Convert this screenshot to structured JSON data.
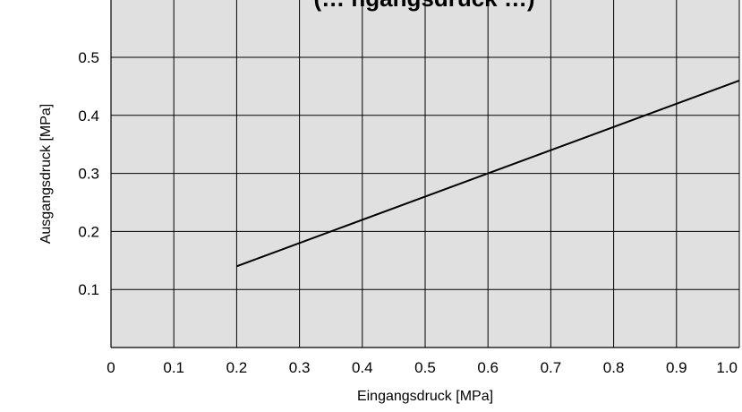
{
  "chart_data": {
    "type": "line",
    "title": "(… ngangsdruck …)",
    "xlabel": "Eingangsdruck  [MPa]",
    "ylabel": "Ausgangsdruck  [MPa]",
    "xlim": [
      0,
      1.0
    ],
    "ylim": [
      0,
      0.5
    ],
    "x_ticks": [
      "0",
      "0.1",
      "0.2",
      "0.3",
      "0.4",
      "0.5",
      "0.6",
      "0.7",
      "0.8",
      "0.9",
      "1.0"
    ],
    "y_ticks": [
      "0.1",
      "0.2",
      "0.3",
      "0.4",
      "0.5"
    ],
    "grid": true,
    "legend": "none",
    "series": [
      {
        "x": [
          0.2,
          1.0
        ],
        "y": [
          0.14,
          0.46
        ]
      }
    ],
    "colors": {
      "plot_background": "#e0e0e0",
      "grid": "#000000",
      "line": "#000000"
    }
  }
}
